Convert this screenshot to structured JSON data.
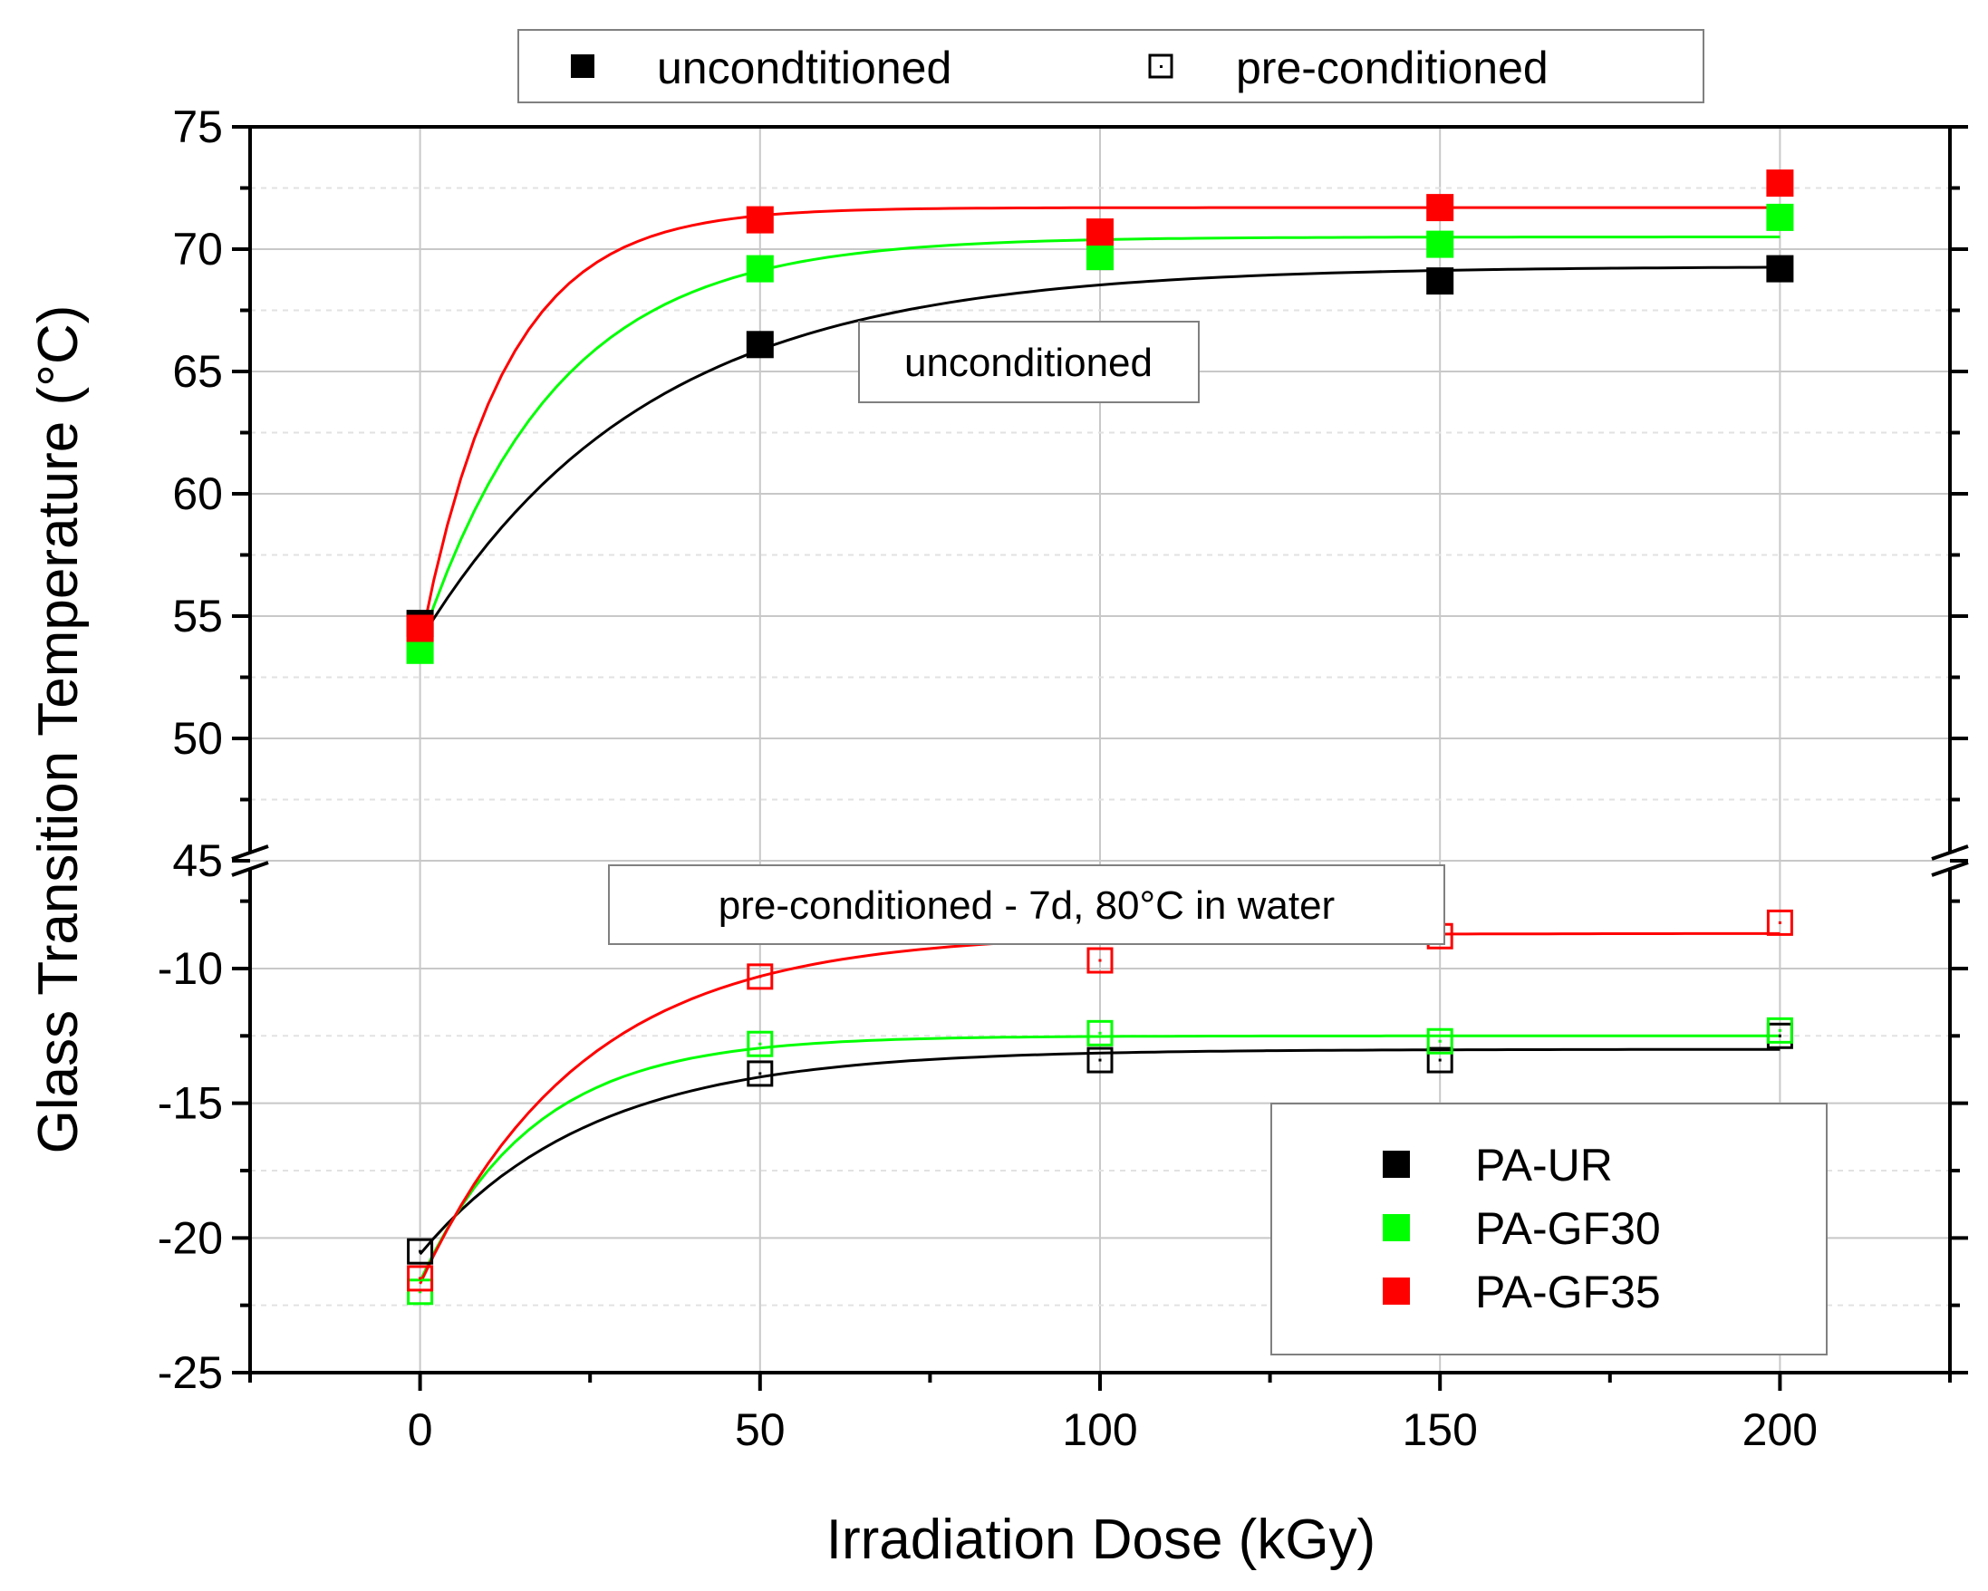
{
  "chart_data": {
    "type": "scatter",
    "xlabel": "Irradiation Dose (kGy)",
    "ylabel": "Glass Transition Temperature (°C)",
    "xlim": [
      -25,
      225
    ],
    "x_ticks": [
      0,
      50,
      100,
      150,
      200
    ],
    "x_tick_labels": [
      "0",
      "50",
      "100",
      "150",
      "200"
    ],
    "grid": true,
    "axis_break": {
      "upper_segment": {
        "ylim": [
          45,
          75
        ],
        "ticks": [
          45,
          50,
          55,
          60,
          65,
          70,
          75
        ],
        "tick_labels": [
          "45",
          "50",
          "55",
          "60",
          "65",
          "70",
          "75"
        ]
      },
      "lower_segment": {
        "ylim": [
          -25,
          -6
        ],
        "ticks": [
          -25,
          -20,
          -15,
          -10
        ],
        "tick_labels": [
          "-25",
          "-20",
          "-15",
          "-10"
        ]
      }
    },
    "marker_legend": {
      "entries": [
        {
          "label": "uncondtitioned",
          "marker": "filled-square"
        },
        {
          "label": "pre-conditioned",
          "marker": "open-square"
        }
      ]
    },
    "series_legend": {
      "placement": "lower-right",
      "entries": [
        {
          "label": "PA-UR",
          "color": "#000000"
        },
        {
          "label": "PA-GF30",
          "color": "#00ff00"
        },
        {
          "label": "PA-GF35",
          "color": "#ff0000"
        }
      ]
    },
    "annotations": [
      {
        "text": "unconditioned",
        "segment": "upper"
      },
      {
        "text": "pre-conditioned - 7d, 80°C in water",
        "segment": "lower"
      }
    ],
    "series": [
      {
        "name": "PA-UR",
        "condition": "unconditioned",
        "marker": "filled-square",
        "color": "#000000",
        "segment": "upper",
        "x": [
          0,
          50,
          100,
          150,
          200
        ],
        "y": [
          54.7,
          66.1,
          69.7,
          68.7,
          69.2
        ],
        "fit": {
          "y0": 54.0,
          "plateau": 69.3,
          "k": 0.03
        }
      },
      {
        "name": "PA-GF30",
        "condition": "unconditioned",
        "marker": "filled-square",
        "color": "#00ff00",
        "segment": "upper",
        "x": [
          0,
          50,
          100,
          150,
          200
        ],
        "y": [
          53.6,
          69.2,
          69.7,
          70.2,
          71.3
        ],
        "fit": {
          "y0": 53.8,
          "plateau": 70.5,
          "k": 0.05
        }
      },
      {
        "name": "PA-GF35",
        "condition": "unconditioned",
        "marker": "filled-square",
        "color": "#ff0000",
        "segment": "upper",
        "x": [
          0,
          50,
          100,
          150,
          200
        ],
        "y": [
          54.5,
          71.2,
          70.7,
          71.7,
          72.7
        ],
        "fit": {
          "y0": 53.8,
          "plateau": 71.7,
          "k": 0.08
        }
      },
      {
        "name": "PA-UR",
        "condition": "pre-conditioned",
        "marker": "open-square",
        "color": "#000000",
        "segment": "lower",
        "x": [
          0,
          50,
          100,
          150,
          200
        ],
        "y": [
          -20.5,
          -13.9,
          -13.4,
          -13.4,
          -12.5
        ],
        "fit": {
          "y0": -20.6,
          "plateau": -13.0,
          "k": 0.04
        }
      },
      {
        "name": "PA-GF30",
        "condition": "pre-conditioned",
        "marker": "open-square",
        "color": "#00ff00",
        "segment": "lower",
        "x": [
          0,
          50,
          100,
          150,
          200
        ],
        "y": [
          -22.0,
          -12.8,
          -12.4,
          -12.7,
          -12.3
        ],
        "fit": {
          "y0": -21.6,
          "plateau": -12.5,
          "k": 0.06
        }
      },
      {
        "name": "PA-GF35",
        "condition": "pre-conditioned",
        "marker": "open-square",
        "color": "#ff0000",
        "segment": "lower",
        "x": [
          0,
          50,
          100,
          150,
          200
        ],
        "y": [
          -21.5,
          -10.3,
          -9.7,
          -8.8,
          -8.3
        ],
        "fit": {
          "y0": -21.7,
          "plateau": -8.7,
          "k": 0.042
        }
      }
    ]
  }
}
